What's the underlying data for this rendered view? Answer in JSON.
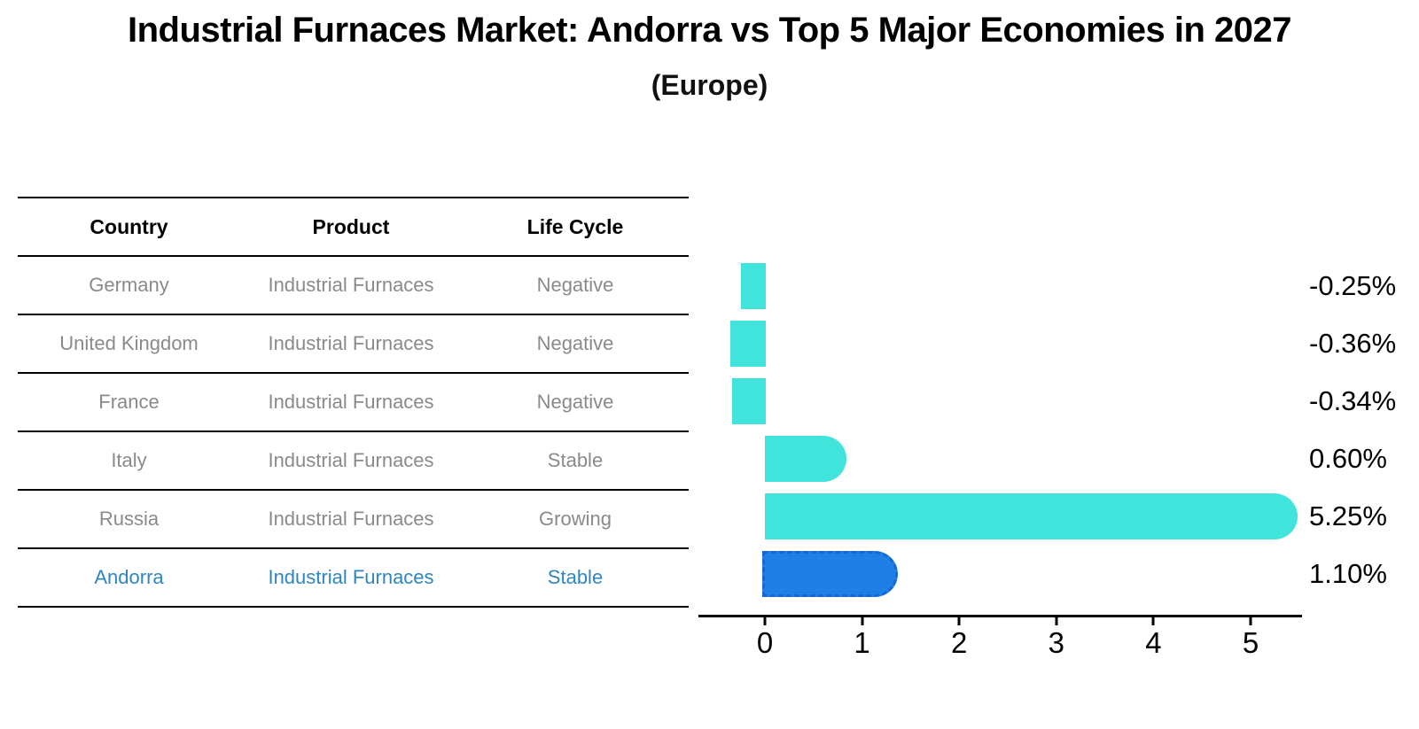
{
  "title": "Industrial Furnaces Market: Andorra vs Top 5 Major Economies in 2027",
  "subtitle": "(Europe)",
  "table": {
    "columns": [
      "Country",
      "Product",
      "Life Cycle"
    ],
    "rows": [
      {
        "country": "Germany",
        "product": "Industrial Furnaces",
        "life_cycle": "Negative",
        "highlight": false
      },
      {
        "country": "United Kingdom",
        "product": "Industrial Furnaces",
        "life_cycle": "Negative",
        "highlight": false
      },
      {
        "country": "France",
        "product": "Industrial Furnaces",
        "life_cycle": "Negative",
        "highlight": false
      },
      {
        "country": "Italy",
        "product": "Industrial Furnaces",
        "life_cycle": "Stable",
        "highlight": false
      },
      {
        "country": "Russia",
        "product": "Industrial Furnaces",
        "life_cycle": "Growing",
        "highlight": false
      },
      {
        "country": "Andorra",
        "product": "Industrial Furnaces",
        "life_cycle": "Stable",
        "highlight": true
      }
    ]
  },
  "chart_data": {
    "type": "bar",
    "orientation": "horizontal",
    "title": "Industrial Furnaces Market: Andorra vs Top 5 Major Economies in 2027 (Europe)",
    "categories": [
      "Germany",
      "United Kingdom",
      "France",
      "Italy",
      "Russia",
      "Andorra"
    ],
    "values": [
      -0.25,
      -0.36,
      -0.34,
      0.6,
      5.25,
      1.1
    ],
    "value_labels": [
      "-0.25%",
      "-0.36%",
      "-0.34%",
      "0.60%",
      "5.25%",
      "1.10%"
    ],
    "highlight_category": "Andorra",
    "x_ticks": [
      0,
      1,
      2,
      3,
      4,
      5
    ],
    "xlim": [
      -0.68,
      5.53
    ],
    "xlabel": "",
    "ylabel": "",
    "grid": false,
    "legend": false
  },
  "colors": {
    "bar_default": "#40E4DA",
    "bar_highlight": "#1F7FE6",
    "bar_highlight_dash": "#1668CE",
    "row_text": "#8A8A8A",
    "highlight_text": "#2E86C1",
    "axis": "#000000"
  }
}
